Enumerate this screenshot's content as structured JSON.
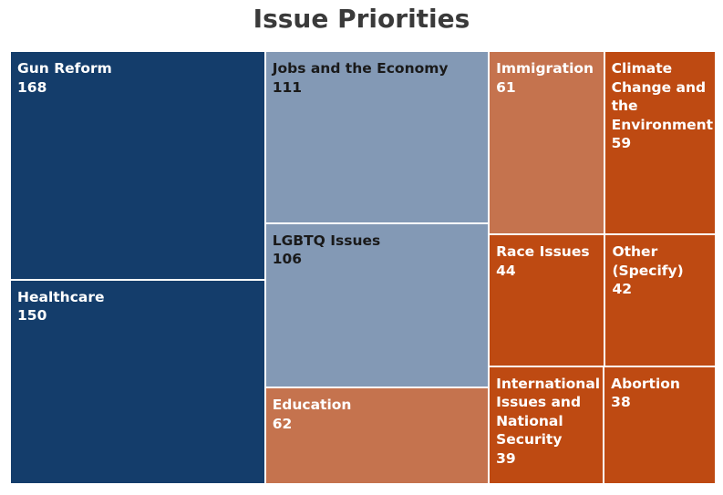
{
  "chart_data": {
    "type": "treemap",
    "title": "Issue Priorities",
    "groups": [
      {
        "color": "#143D6B",
        "text_color": "#ffffff",
        "items": [
          {
            "label": "Gun Reform",
            "value": 168
          },
          {
            "label": "Healthcare",
            "value": 150
          }
        ]
      },
      {
        "color": "#8399B5",
        "text_color": "#1a1a1a",
        "items": [
          {
            "label": "Jobs and the Economy",
            "value": 111
          },
          {
            "label": "LGBTQ Issues",
            "value": 106
          },
          {
            "label": "Education",
            "value": 62,
            "color": "#C5734E",
            "text_color": "#ffffff"
          }
        ]
      },
      {
        "color": "#BE4A12",
        "text_color": "#ffffff",
        "items": [
          {
            "label": "Immigration",
            "value": 61,
            "color": "#C5734E"
          },
          {
            "label": "Climate\nChange and\nthe\nEnvironment",
            "value": 59
          },
          {
            "label": "Race Issues",
            "value": 44
          },
          {
            "label": "Other\n(Specify)",
            "value": 42
          },
          {
            "label": "International\nIssues and\nNational\nSecurity",
            "value": 39
          },
          {
            "label": "Abortion",
            "value": 38
          }
        ]
      }
    ]
  }
}
